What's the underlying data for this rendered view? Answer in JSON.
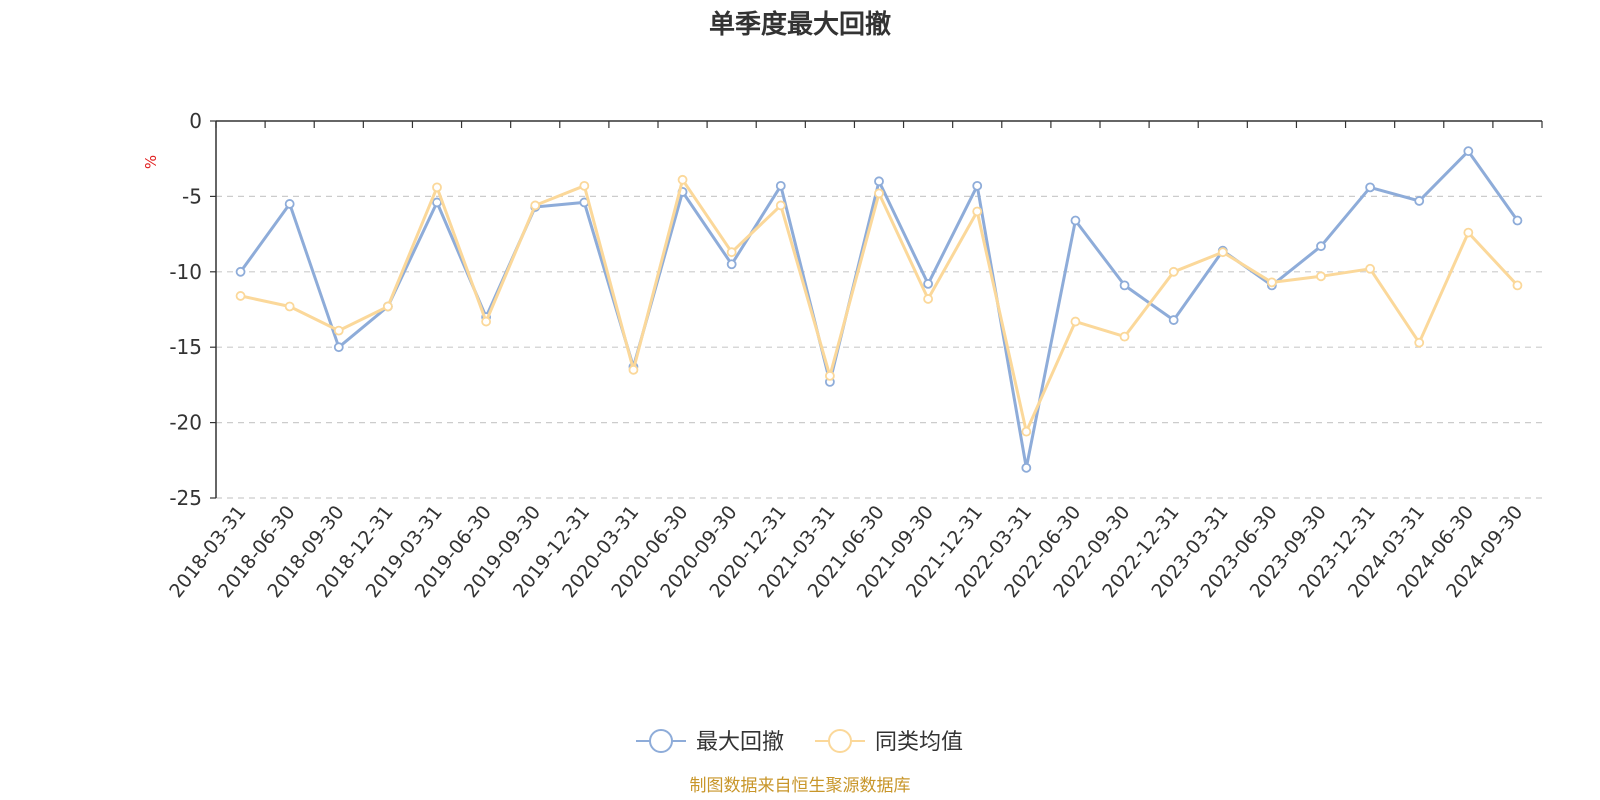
{
  "chart_data": {
    "type": "line",
    "title": "单季度最大回撤",
    "ylabel": "%",
    "ylim": [
      -25,
      0
    ],
    "yticks": [
      0,
      -5,
      -10,
      -15,
      -20,
      -25
    ],
    "grid": "horizontal-dashed",
    "legend_position": "bottom-center",
    "categories": [
      "2018-03-31",
      "2018-06-30",
      "2018-09-30",
      "2018-12-31",
      "2019-03-31",
      "2019-06-30",
      "2019-09-30",
      "2019-12-31",
      "2020-03-31",
      "2020-06-30",
      "2020-09-30",
      "2020-12-31",
      "2021-03-31",
      "2021-06-30",
      "2021-09-30",
      "2021-12-31",
      "2022-03-31",
      "2022-06-30",
      "2022-09-30",
      "2022-12-31",
      "2023-03-31",
      "2023-06-30",
      "2023-09-30",
      "2023-12-31",
      "2024-03-31",
      "2024-06-30",
      "2024-09-30"
    ],
    "series": [
      {
        "name": "最大回撤",
        "color": "#8eacd9",
        "values": [
          -10.0,
          -5.5,
          -15.0,
          -12.3,
          -5.4,
          -13.0,
          -5.7,
          -5.4,
          -16.3,
          -4.7,
          -9.5,
          -4.3,
          -17.3,
          -4.0,
          -10.8,
          -4.3,
          -23.0,
          -6.6,
          -10.9,
          -13.2,
          -8.6,
          -10.9,
          -8.3,
          -4.4,
          -5.3,
          -2.0,
          -6.6
        ]
      },
      {
        "name": "同类均值",
        "color": "#fbd89a",
        "values": [
          -11.6,
          -12.3,
          -13.9,
          -12.3,
          -4.4,
          -13.3,
          -5.6,
          -4.3,
          -16.5,
          -3.9,
          -8.7,
          -5.6,
          -16.9,
          -4.8,
          -11.8,
          -6.0,
          -20.6,
          -13.3,
          -14.3,
          -10.0,
          -8.7,
          -10.7,
          -10.3,
          -9.8,
          -14.7,
          -7.4,
          -10.9
        ]
      }
    ]
  },
  "source_text": "制图数据来自恒生聚源数据库"
}
